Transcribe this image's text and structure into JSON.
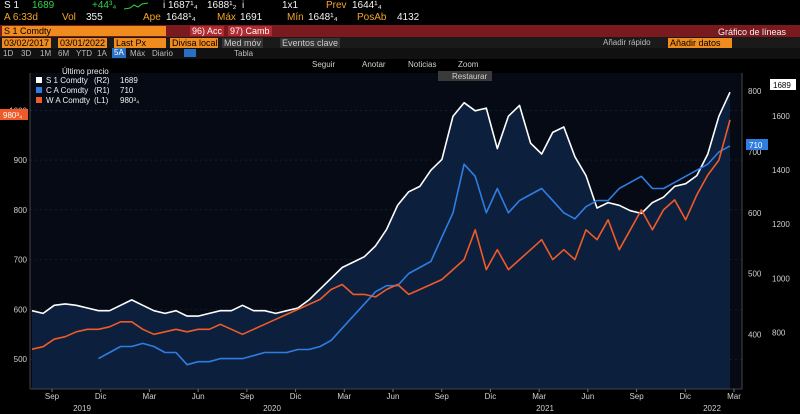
{
  "ticker_bar": {
    "symbol": "S 1",
    "last": "1689",
    "change": "+44³₄",
    "open_bid": "1687¹₄",
    "open_ask": "1688¹₂",
    "size": "1x1",
    "prev_label": "Prev",
    "prev_value": "1644¹₄",
    "ask_flag": "i",
    "bid_flag": "i"
  },
  "stats_bar": {
    "time_label": "A 6:33d",
    "vol_label": "Vol",
    "vol_value": "355",
    "open_label": "Ape",
    "open_value": "1648¹₄",
    "max_label": "Máx",
    "max_value": "1691",
    "min_label": "Mín",
    "min_value": "1648¹₄",
    "posab_label": "PosAb",
    "posab_value": "4132"
  },
  "command_bar": {
    "security": "S 1 Comdty",
    "menu_actions": "96) Acc",
    "menu_change": "97) Camb",
    "title": "Gráfico de líneas"
  },
  "date_bar": {
    "start_date": "03/02/2017",
    "end_date": "03/01/2022",
    "field": "Last Px",
    "currency": "Divisa local",
    "moving_avg": "Med móv",
    "events": "Eventos clave",
    "quick_add": "Añadir rápido",
    "add_data": "Añadir datos"
  },
  "period_bar": {
    "periods": [
      "1D",
      "3D",
      "1M",
      "6M",
      "YTD",
      "1A"
    ],
    "selected_period": "5A",
    "max_label": "Máx",
    "freq": "Diario",
    "table_label": "Tabla"
  },
  "chart_toolbar": {
    "follow": "Seguir",
    "annotate": "Anotar",
    "news": "Noticias",
    "zoom": "Zoom",
    "restore": "Restaurar"
  },
  "legend": {
    "header": "Último precio",
    "entries": [
      {
        "name": "S 1 Comdty",
        "axis": "(R2)",
        "value": "1689",
        "color": "#ffffff"
      },
      {
        "name": "C A Comdty",
        "axis": "(R1)",
        "value": "710",
        "color": "#2f7de1"
      },
      {
        "name": "W A Comdty",
        "axis": "(L1)",
        "value": "980³₄",
        "color": "#f05a28"
      }
    ]
  },
  "badges": {
    "left_last": "980³₄",
    "r1_last": "710",
    "r2_last": "1689"
  },
  "chart_data": {
    "type": "line",
    "title": "Gráfico de líneas",
    "x_range": [
      "2018-08",
      "2022-03"
    ],
    "x_ticks": [
      "Sep",
      "Dic",
      "Mar",
      "Jun",
      "Sep",
      "Dic",
      "Mar",
      "Jun",
      "Sep",
      "Dic",
      "Mar",
      "Jun",
      "Sep",
      "Dic",
      "Mar"
    ],
    "year_labels": [
      "2019",
      "2020",
      "2021",
      "2022"
    ],
    "left_axis": {
      "ticks": [
        500,
        600,
        700,
        800,
        900,
        1000
      ],
      "ylim": [
        440,
        1075
      ]
    },
    "r1_axis": {
      "ticks": [
        400,
        500,
        600,
        700,
        800
      ],
      "ylim": [
        310,
        830
      ]
    },
    "r2_axis": {
      "ticks": [
        800,
        1000,
        1200,
        1400,
        1600
      ],
      "ylim": [
        590,
        1760
      ]
    },
    "series": [
      {
        "name": "S 1 Comdty",
        "axis": "R2",
        "color": "#ffffff",
        "values": [
          880,
          870,
          900,
          905,
          900,
          890,
          880,
          880,
          900,
          920,
          900,
          880,
          870,
          880,
          860,
          860,
          870,
          880,
          880,
          900,
          880,
          880,
          870,
          880,
          890,
          920,
          960,
          1000,
          1040,
          1060,
          1080,
          1120,
          1180,
          1270,
          1320,
          1340,
          1400,
          1440,
          1600,
          1650,
          1620,
          1630,
          1480,
          1600,
          1640,
          1500,
          1460,
          1540,
          1560,
          1450,
          1380,
          1260,
          1280,
          1270,
          1250,
          1240,
          1280,
          1300,
          1340,
          1350,
          1380,
          1460,
          1600,
          1689
        ]
      },
      {
        "name": "C A Comdty",
        "axis": "R1",
        "color": "#2f7de1",
        "values": [
          null,
          null,
          null,
          null,
          null,
          null,
          360,
          370,
          380,
          380,
          385,
          380,
          370,
          370,
          350,
          355,
          355,
          360,
          360,
          360,
          365,
          370,
          370,
          370,
          375,
          375,
          380,
          390,
          410,
          430,
          450,
          470,
          480,
          480,
          500,
          510,
          520,
          560,
          600,
          680,
          660,
          600,
          640,
          600,
          620,
          630,
          640,
          620,
          600,
          590,
          610,
          620,
          620,
          640,
          650,
          660,
          640,
          640,
          650,
          660,
          670,
          680,
          700,
          710
        ]
      },
      {
        "name": "W A Comdty",
        "axis": "L1",
        "color": "#f05a28",
        "values": [
          520,
          525,
          540,
          545,
          555,
          560,
          560,
          565,
          575,
          575,
          560,
          550,
          555,
          560,
          555,
          560,
          560,
          570,
          560,
          550,
          560,
          570,
          580,
          590,
          600,
          610,
          620,
          640,
          650,
          630,
          630,
          625,
          640,
          650,
          630,
          640,
          650,
          660,
          680,
          700,
          760,
          680,
          720,
          680,
          700,
          720,
          740,
          700,
          720,
          700,
          760,
          740,
          780,
          720,
          760,
          800,
          760,
          800,
          820,
          780,
          830,
          870,
          900,
          980.75
        ]
      }
    ]
  }
}
